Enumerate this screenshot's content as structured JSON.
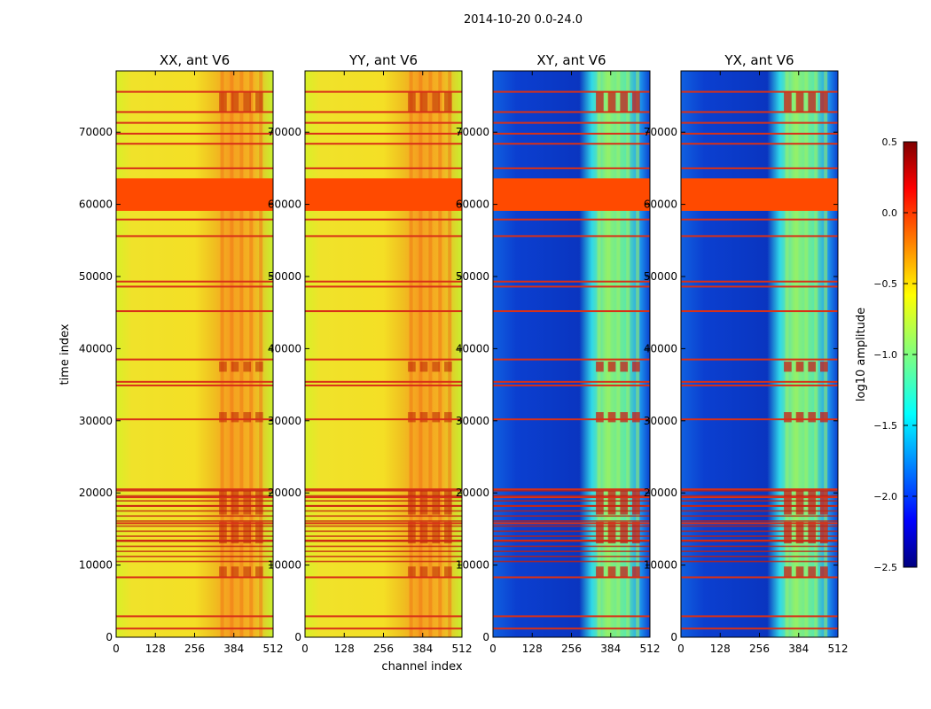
{
  "figure_title": "2014-10-20 0.0-24.0",
  "colors": {
    "xx_base": "#f2e02a",
    "flag": "#ff4a00",
    "flag_line": "#d83018",
    "hot": "#b00000",
    "xy_base": "#0a3cc8"
  },
  "chart_data": {
    "type": "heatmap",
    "title": "2014-10-20 0.0-24.0",
    "xlabel": "channel index",
    "ylabel": "time index",
    "xlim": [
      0,
      512
    ],
    "ylim": [
      0,
      78500
    ],
    "xticks": [
      0,
      128,
      256,
      384,
      512
    ],
    "yticks": [
      0,
      10000,
      20000,
      30000,
      40000,
      50000,
      60000,
      70000
    ],
    "flagged_band": [
      59100,
      63600
    ],
    "flagged_rows": [
      1200,
      2900,
      8300,
      13400,
      15800,
      18200,
      19400,
      20500,
      30200,
      34900,
      35400,
      38500,
      45200,
      48600,
      49300,
      55600,
      57900,
      65000,
      68400,
      69800,
      71300,
      72800,
      75600
    ],
    "bright_channels": [
      330,
      488
    ],
    "panels": [
      {
        "name": "xx",
        "title": "XX, ant V6",
        "level": -0.5
      },
      {
        "name": "yy",
        "title": "YY, ant V6",
        "level": -0.5
      },
      {
        "name": "xy",
        "title": "XY, ant V6",
        "level": -2.1
      },
      {
        "name": "yx",
        "title": "YX, ant V6",
        "level": -2.1
      }
    ],
    "colorbar": {
      "label": "log10 amplitude",
      "range": [
        -2.5,
        0.5
      ],
      "ticks": [
        0.5,
        0.0,
        -0.5,
        -1.0,
        -1.5,
        -2.0,
        -2.5
      ],
      "tick_labels": [
        "0.5",
        "0.0",
        "−0.5",
        "−1.0",
        "−1.5",
        "−2.0",
        "−2.5"
      ]
    }
  }
}
